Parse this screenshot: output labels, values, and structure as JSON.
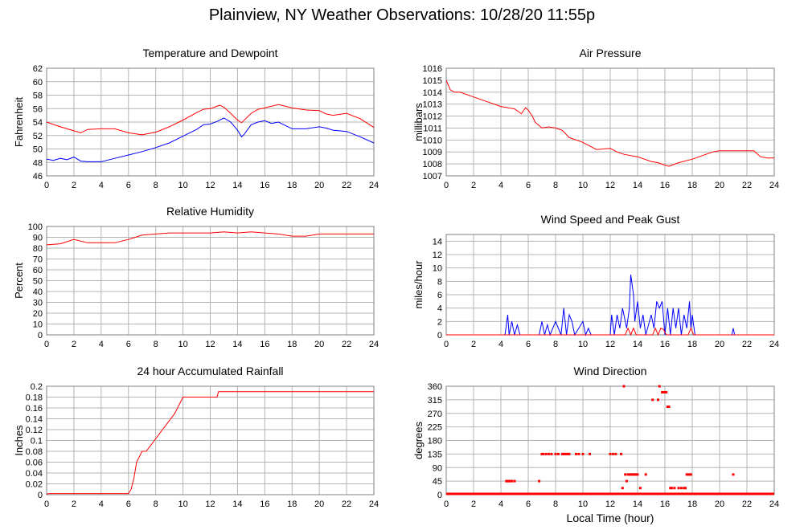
{
  "title": "Plainview, NY Weather Observations: 10/28/20 11:55p",
  "colors": {
    "red": "#ff0000",
    "blue": "#0000ff",
    "grid": "#b4b4b4",
    "frame": "#808080"
  },
  "chart_data": [
    {
      "id": "temp",
      "type": "line",
      "title": "Temperature and Dewpoint",
      "xlabel": "",
      "ylabel": "Fahrenheit",
      "xlim": [
        0,
        24
      ],
      "ylim": [
        46,
        62
      ],
      "xticks": [
        0,
        2,
        4,
        6,
        8,
        10,
        12,
        14,
        16,
        18,
        20,
        22,
        24
      ],
      "yticks": [
        46,
        48,
        50,
        52,
        54,
        56,
        58,
        60,
        62
      ],
      "series": [
        {
          "color": "#ff0000",
          "x": [
            0,
            1,
            2,
            2.5,
            3,
            4,
            5,
            6,
            7,
            8,
            9,
            10,
            11,
            11.5,
            12,
            12.7,
            13,
            13.5,
            14,
            14.3,
            14.6,
            15,
            15.5,
            16,
            17,
            18,
            19,
            20,
            20.5,
            21,
            22,
            23,
            24
          ],
          "y": [
            54,
            53.3,
            52.7,
            52.4,
            52.9,
            53,
            53,
            52.4,
            52.1,
            52.5,
            53.3,
            54.3,
            55.4,
            55.9,
            56,
            56.5,
            56.2,
            55.3,
            54.3,
            53.9,
            54.5,
            55.3,
            55.9,
            56.1,
            56.6,
            56.1,
            55.8,
            55.7,
            55.2,
            55,
            55.3,
            54.5,
            53.2
          ]
        },
        {
          "color": "#0000ff",
          "x": [
            0,
            0.5,
            1,
            1.5,
            2,
            2.5,
            3,
            4,
            5,
            6,
            7,
            8,
            9,
            10,
            11,
            11.5,
            12,
            12.5,
            13,
            13.5,
            14,
            14.3,
            14.5,
            15,
            15.5,
            16,
            16.5,
            17,
            18,
            19,
            20,
            20.5,
            21,
            22,
            23,
            24
          ],
          "y": [
            48.5,
            48.3,
            48.6,
            48.4,
            48.8,
            48.2,
            48.1,
            48.1,
            48.6,
            49.1,
            49.6,
            50.2,
            50.9,
            51.9,
            52.9,
            53.6,
            53.7,
            54.1,
            54.6,
            54,
            52.8,
            51.8,
            52.2,
            53.6,
            54,
            54.2,
            53.8,
            54,
            53,
            53,
            53.3,
            53.1,
            52.8,
            52.6,
            51.8,
            50.9
          ]
        }
      ]
    },
    {
      "id": "press",
      "type": "line",
      "title": "Air Pressure",
      "xlabel": "",
      "ylabel": "millibars",
      "xlim": [
        0,
        24
      ],
      "ylim": [
        1007,
        1016
      ],
      "xticks": [
        0,
        2,
        4,
        6,
        8,
        10,
        12,
        14,
        16,
        18,
        20,
        22,
        24
      ],
      "yticks": [
        1007,
        1008,
        1009,
        1010,
        1011,
        1012,
        1013,
        1014,
        1015,
        1016
      ],
      "series": [
        {
          "color": "#ff0000",
          "x": [
            0,
            0.3,
            0.6,
            1,
            2,
            3,
            4,
            5,
            5.5,
            5.8,
            6,
            6.3,
            6.5,
            7,
            7.5,
            8,
            8.5,
            9,
            9.5,
            10,
            10.5,
            11,
            12,
            12.5,
            13,
            14,
            15,
            15.5,
            16,
            16.3,
            17,
            18,
            19,
            19.5,
            20,
            21,
            22,
            22.5,
            23,
            23.5,
            24
          ],
          "y": [
            1015,
            1014.2,
            1014,
            1014,
            1013.6,
            1013.2,
            1012.8,
            1012.6,
            1012.2,
            1012.7,
            1012.5,
            1012,
            1011.5,
            1011,
            1011.1,
            1011,
            1010.8,
            1010.2,
            1010,
            1009.8,
            1009.5,
            1009.2,
            1009.3,
            1009,
            1008.8,
            1008.6,
            1008.2,
            1008.1,
            1007.9,
            1007.8,
            1008.1,
            1008.4,
            1008.8,
            1009,
            1009.1,
            1009.1,
            1009.1,
            1009.1,
            1008.6,
            1008.5,
            1008.5
          ]
        }
      ]
    },
    {
      "id": "rh",
      "type": "line",
      "title": "Relative Humidity",
      "xlabel": "",
      "ylabel": "Percent",
      "xlim": [
        0,
        24
      ],
      "ylim": [
        0,
        100
      ],
      "xticks": [
        0,
        2,
        4,
        6,
        8,
        10,
        12,
        14,
        16,
        18,
        20,
        22,
        24
      ],
      "yticks": [
        0,
        10,
        20,
        30,
        40,
        50,
        60,
        70,
        80,
        90,
        100
      ],
      "series": [
        {
          "color": "#ff0000",
          "x": [
            0,
            1,
            2,
            3,
            4,
            5,
            6,
            7,
            8,
            9,
            10,
            11,
            12,
            13,
            14,
            15,
            16,
            17,
            18,
            19,
            20,
            21,
            22,
            23,
            24
          ],
          "y": [
            83,
            84,
            88,
            85,
            85,
            85,
            88,
            92,
            93,
            94,
            94,
            94,
            94,
            95,
            94,
            95,
            94,
            93,
            91,
            91,
            93,
            93,
            93,
            93,
            93
          ]
        }
      ]
    },
    {
      "id": "wind",
      "type": "line",
      "title": "Wind Speed and Peak Gust",
      "xlabel": "",
      "ylabel": "miles/hour",
      "xlim": [
        0,
        24
      ],
      "ylim": [
        0,
        15
      ],
      "xticks": [
        0,
        2,
        4,
        6,
        8,
        10,
        12,
        14,
        16,
        18,
        20,
        22,
        24
      ],
      "yticks": [
        0,
        2,
        4,
        6,
        8,
        10,
        12,
        14
      ],
      "series": [
        {
          "color": "#0000ff",
          "x": [
            0,
            4.3,
            4.5,
            4.6,
            4.8,
            5,
            5.2,
            5.4,
            6.8,
            7,
            7.2,
            7.4,
            7.6,
            8,
            8.4,
            8.6,
            8.8,
            9,
            9.2,
            9.4,
            10,
            10.2,
            10.4,
            10.6,
            11,
            12,
            12.1,
            12.3,
            12.5,
            12.7,
            12.9,
            13,
            13.2,
            13.4,
            13.5,
            13.7,
            13.8,
            14,
            14.2,
            14.4,
            14.6,
            15,
            15.2,
            15.4,
            15.6,
            15.8,
            16,
            16.2,
            16.4,
            16.6,
            16.8,
            17,
            17.2,
            17.4,
            17.6,
            17.8,
            17.9,
            18,
            18.2,
            20.9,
            21,
            21.1,
            24
          ],
          "y": [
            0,
            0,
            3,
            0,
            2,
            0,
            1.5,
            0,
            0,
            2,
            0,
            1.5,
            0,
            2,
            0,
            4,
            0,
            3,
            2,
            0,
            2,
            0,
            1,
            0,
            0,
            0,
            3,
            0,
            3,
            1,
            4,
            3,
            1,
            4,
            9,
            6,
            2,
            5,
            1,
            3,
            0,
            3,
            1,
            5,
            4,
            5,
            0,
            4,
            0,
            4,
            1,
            4,
            0,
            3,
            1,
            5,
            1,
            3,
            0,
            0,
            1,
            0,
            0
          ]
        },
        {
          "color": "#ff0000",
          "x": [
            0,
            13.1,
            13.3,
            13.5,
            13.7,
            13.9,
            15.1,
            15.3,
            15.5,
            15.7,
            15.9,
            16.1,
            17.7,
            17.9,
            18.1,
            24
          ],
          "y": [
            0,
            0,
            1,
            0,
            1,
            0,
            0,
            1,
            0,
            1,
            0.8,
            0,
            0,
            1,
            0,
            0
          ]
        }
      ]
    },
    {
      "id": "rain",
      "type": "line",
      "title": "24 hour Accumulated Rainfall",
      "xlabel": "",
      "ylabel": "Inches",
      "xlim": [
        0,
        24
      ],
      "ylim": [
        0,
        0.2
      ],
      "xticks": [
        0,
        2,
        4,
        6,
        8,
        10,
        12,
        14,
        16,
        18,
        20,
        22,
        24
      ],
      "yticks": [
        0,
        0.02,
        0.04,
        0.06,
        0.08,
        0.1,
        0.12,
        0.14,
        0.16,
        0.18,
        0.2
      ],
      "series": [
        {
          "color": "#ff0000",
          "x": [
            0,
            0.1,
            6,
            6.2,
            6.4,
            6.6,
            6.8,
            7,
            7.3,
            7.6,
            7.9,
            8.2,
            8.5,
            8.8,
            9.1,
            9.4,
            9.7,
            10,
            10.3,
            12.5,
            12.6,
            24
          ],
          "y": [
            0,
            0.002,
            0.002,
            0.01,
            0.03,
            0.06,
            0.07,
            0.08,
            0.08,
            0.09,
            0.1,
            0.11,
            0.12,
            0.13,
            0.14,
            0.15,
            0.165,
            0.18,
            0.18,
            0.18,
            0.19,
            0.19
          ]
        }
      ]
    },
    {
      "id": "dir",
      "type": "scatter",
      "title": "Wind Direction",
      "xlabel": "Local Time (hour)",
      "ylabel": "degrees",
      "xlim": [
        0,
        24
      ],
      "ylim": [
        0,
        360
      ],
      "xticks": [
        0,
        2,
        4,
        6,
        8,
        10,
        12,
        14,
        16,
        18,
        20,
        22,
        24
      ],
      "yticks": [
        0,
        45,
        90,
        135,
        180,
        225,
        270,
        315,
        360
      ],
      "series": [
        {
          "color": "#ff0000",
          "x": [
            4.4,
            4.5,
            4.6,
            4.7,
            4.8,
            5,
            6.8,
            7,
            7.1,
            7.3,
            7.5,
            7.7,
            8,
            8.2,
            8.5,
            8.6,
            8.7,
            8.8,
            8.9,
            9,
            9.5,
            9.7,
            10,
            10.5,
            12,
            12.2,
            12.4,
            12.8,
            12.9,
            13,
            13.2,
            13.1,
            13.3,
            13.4,
            13.5,
            13.6,
            13.7,
            13.8,
            13.9,
            14,
            14.2,
            14.6,
            15.1,
            15.5,
            15.6,
            15.8,
            15.9,
            16,
            16.1,
            16.2,
            16.3,
            16.4,
            16.5,
            16.7,
            17,
            17.2,
            17.4,
            17.5,
            17.6,
            17.7,
            17.8,
            17.9,
            21
          ],
          "y": [
            45,
            45,
            45,
            45,
            45,
            45,
            45,
            135,
            135,
            135,
            135,
            135,
            135,
            135,
            135,
            135,
            135,
            135,
            135,
            135,
            135,
            135,
            135,
            135,
            135,
            135,
            135,
            135,
            22,
            360,
            45,
            67,
            67,
            67,
            67,
            67,
            67,
            67,
            67,
            67,
            22,
            67,
            315,
            315,
            360,
            340,
            340,
            340,
            340,
            292,
            292,
            22,
            22,
            22,
            22,
            22,
            22,
            22,
            67,
            67,
            67,
            67,
            67
          ]
        }
      ]
    }
  ]
}
